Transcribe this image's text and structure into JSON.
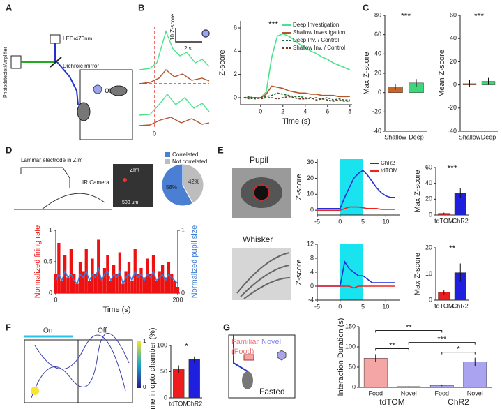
{
  "panels": {
    "letters": [
      "A",
      "B",
      "C",
      "D",
      "E",
      "F",
      "G"
    ],
    "A": {
      "led": "LED/470nm",
      "mirror": "Dichroic mirror",
      "detector": "Photodetector/Amplifier",
      "or": "or"
    },
    "B": {
      "scale_y": "10 Z-score",
      "scale_x": "2 s",
      "zero": "0"
    },
    "D": {
      "electrode": "Laminar electrode in ZIm",
      "camera": "IR Camera",
      "zim": "ZIm",
      "scale": "500 μm"
    },
    "E": {
      "pupil": "Pupil",
      "whisker": "Whisker"
    },
    "F": {
      "on": "On",
      "off": "Off",
      "cbar_min": "0",
      "cbar_max": "1"
    },
    "G": {
      "familiar": "Familiar",
      "food": "(Food)",
      "novel": "Novel",
      "fasted": "Fasted"
    }
  },
  "chart_data": [
    {
      "type": "line",
      "ylabel": "Z-score",
      "xlabel": "Time (s)",
      "annotation": "***",
      "legend": "upper right",
      "x": [
        -1.5,
        -1,
        -0.5,
        0,
        0.5,
        1,
        1.5,
        2,
        2.5,
        3,
        3.5,
        4,
        4.5,
        5,
        5.5,
        6,
        6.5,
        7,
        7.5,
        8
      ],
      "xlim": [
        -1.8,
        8.2
      ],
      "xticks": [
        0,
        2,
        4,
        6,
        8
      ],
      "ylim": [
        -0.6,
        6.6
      ],
      "yticks": [
        0,
        2,
        4,
        6
      ],
      "series": [
        {
          "name": "Deep Investigation",
          "color": "#4be38a",
          "values": [
            0,
            0,
            0,
            0,
            0.5,
            3.5,
            5.3,
            5.5,
            5.3,
            5,
            4.6,
            4.3,
            4,
            3.8,
            3.5,
            3.3,
            3,
            2.8,
            2.6,
            2.4
          ]
        },
        {
          "name": "Shallow Investigation",
          "color": "#b4552c",
          "values": [
            0,
            0,
            0,
            0,
            0.3,
            1,
            0.9,
            0.8,
            0.6,
            0.5,
            0.4,
            0.4,
            0.3,
            0.3,
            0.2,
            0.2,
            0.2,
            0.1,
            0.1,
            0.1
          ]
        },
        {
          "name": "Deep Inv. / Control",
          "color": "#1e6b34",
          "dash": true,
          "values": [
            0,
            0.1,
            -0.1,
            0,
            0.1,
            0.2,
            0.4,
            0.3,
            0.2,
            0.1,
            0.1,
            0,
            -0.1,
            0,
            -0.1,
            0,
            -0.2,
            -0.1,
            -0.2,
            -0.2
          ]
        },
        {
          "name": "Shallow Inv. / Control",
          "color": "#6b3a1e",
          "dash": true,
          "values": [
            0,
            -0.1,
            0,
            -0.1,
            0,
            0,
            -0.1,
            0,
            0.1,
            0,
            -0.1,
            -0.1,
            0,
            -0.2,
            -0.1,
            -0.2,
            -0.3,
            -0.2,
            -0.3,
            -0.3
          ]
        }
      ]
    },
    {
      "type": "bar",
      "ylabel": "Max Z-score",
      "annotation": "***",
      "categories": [
        "Shallow",
        "Deep"
      ],
      "values": [
        6,
        10
      ],
      "errors": [
        3,
        4
      ],
      "colors": [
        "#c8652a",
        "#3ed67a"
      ],
      "ylim": [
        -40,
        80
      ],
      "yticks": [
        -40,
        -20,
        0,
        20,
        40,
        60,
        80
      ]
    },
    {
      "type": "bar",
      "ylabel": "Mean Z-score",
      "annotation": "***",
      "categories": [
        "Shallow",
        "Deep"
      ],
      "values": [
        1,
        3
      ],
      "errors": [
        3,
        3
      ],
      "colors": [
        "#c8652a",
        "#3ed67a"
      ],
      "ylim": [
        -40,
        60
      ],
      "yticks": [
        -40,
        -20,
        0,
        20,
        40,
        60
      ]
    },
    {
      "type": "pie",
      "categories": [
        "Correlated",
        "Not correlated"
      ],
      "values": [
        58,
        42
      ],
      "value_labels": [
        "58%",
        "42%"
      ],
      "colors": [
        "#4a7fd4",
        "#bdbdbd"
      ]
    },
    {
      "type": "combo",
      "ylabel": "Normalized firing rate",
      "y2label": "Normalized pupil size",
      "xlabel": "Time (s)",
      "x": [
        0,
        5,
        10,
        15,
        20,
        25,
        30,
        35,
        40,
        45,
        50,
        55,
        60,
        65,
        70,
        75,
        80,
        85,
        90,
        95,
        100,
        105,
        110,
        115,
        120,
        125,
        130,
        135,
        140,
        145,
        150,
        155,
        160,
        165,
        170,
        175,
        180,
        185,
        190,
        195,
        200
      ],
      "xlim": [
        0,
        200
      ],
      "xticks": [
        0,
        200
      ],
      "ylim": [
        0,
        1
      ],
      "yticks": [
        0,
        0.5,
        1
      ],
      "y2lim": [
        0,
        1
      ],
      "y2ticks": [
        0,
        1
      ],
      "series": [
        {
          "color": "#ee1111",
          "values": [
            0.3,
            0.8,
            0.2,
            0.6,
            0.25,
            0.7,
            0.3,
            0.15,
            0.5,
            0.35,
            0.7,
            0.2,
            0.55,
            0.3,
            0.85,
            0.25,
            0.4,
            0.6,
            0.2,
            0.45,
            0.3,
            0.65,
            0.15,
            0.35,
            0.5,
            0.2,
            0.7,
            0.3,
            0.4,
            0.25,
            0.55,
            0.3,
            0.6,
            0.2,
            0.35,
            0.45,
            0.25,
            0.5,
            0.3,
            0.2,
            0.1
          ]
        },
        {
          "color": "#3a7bd5",
          "axis": "y2",
          "values": [
            0.2,
            0.3,
            0.2,
            0.35,
            0.25,
            0.3,
            0.2,
            0.15,
            0.3,
            0.25,
            0.35,
            0.2,
            0.3,
            0.25,
            0.4,
            0.2,
            0.3,
            0.35,
            0.2,
            0.3,
            0.25,
            0.35,
            0.15,
            0.25,
            0.3,
            0.2,
            0.35,
            0.25,
            0.3,
            0.2,
            0.3,
            0.25,
            0.35,
            0.2,
            0.25,
            0.3,
            0.2,
            0.3,
            0.25,
            0.2,
            0.15
          ]
        }
      ]
    },
    {
      "type": "line",
      "ylabel": "Z-score",
      "legend": "upper right",
      "shade": [
        0,
        5
      ],
      "shade_color": "#19e3ee",
      "x": [
        -5,
        -4,
        -3,
        -2,
        -1,
        0,
        1,
        2,
        3,
        4,
        5,
        6,
        7,
        8,
        9,
        10,
        11,
        12
      ],
      "xlim": [
        -5,
        13
      ],
      "xticks": [
        -5,
        0,
        5,
        10
      ],
      "ylim": [
        -3,
        32
      ],
      "yticks": [
        0,
        10,
        20,
        30
      ],
      "series": [
        {
          "name": "ChR2",
          "color": "#1f2fd8",
          "values": [
            1,
            1,
            1,
            1,
            1,
            1,
            8,
            14,
            20,
            23,
            25,
            22,
            18,
            14,
            11,
            9,
            8,
            8
          ]
        },
        {
          "name": "tdTOM",
          "color": "#ee2222",
          "values": [
            0,
            0,
            0,
            0,
            0,
            0,
            1,
            2,
            2,
            2,
            1.5,
            1,
            1,
            1,
            0.5,
            0.5,
            0.5,
            0.5
          ]
        }
      ]
    },
    {
      "type": "bar",
      "ylabel": "Max Z-score",
      "annotation": "***",
      "categories": [
        "tdTOM",
        "ChR2"
      ],
      "values": [
        2,
        28
      ],
      "errors": [
        1,
        6
      ],
      "colors": [
        "#ee1c1c",
        "#1f1fe0"
      ],
      "ylim": [
        0,
        60
      ],
      "yticks": [
        0,
        20,
        40,
        60
      ]
    },
    {
      "type": "line",
      "ylabel": "Z-score",
      "shade": [
        0,
        5
      ],
      "shade_color": "#19e3ee",
      "x": [
        -5,
        -4,
        -3,
        -2,
        -1,
        0,
        1,
        2,
        3,
        4,
        5,
        6,
        7,
        8,
        9,
        10,
        11,
        12
      ],
      "xlim": [
        -5,
        13
      ],
      "xticks": [
        -5,
        0,
        5,
        10
      ],
      "ylim": [
        -4,
        12
      ],
      "yticks": [
        -4,
        0,
        4,
        8,
        12
      ],
      "series": [
        {
          "color": "#1f2fd8",
          "values": [
            0,
            0,
            0,
            0,
            0,
            0,
            7,
            5,
            4,
            3,
            3,
            2,
            1,
            1,
            1,
            1,
            1,
            1
          ]
        },
        {
          "color": "#ee2222",
          "values": [
            0,
            0,
            0,
            0,
            0,
            0,
            0,
            0,
            -0.5,
            0,
            0,
            0,
            0,
            0,
            0,
            0,
            0,
            0
          ]
        }
      ]
    },
    {
      "type": "bar",
      "ylabel": "Max Z-score",
      "annotation": "**",
      "categories": [
        "tdTOM",
        "ChR2"
      ],
      "values": [
        3,
        10.5
      ],
      "errors": [
        1,
        3.5
      ],
      "colors": [
        "#ee1c1c",
        "#1f1fe0"
      ],
      "ylim": [
        0,
        20
      ],
      "yticks": [
        0,
        10,
        20
      ]
    },
    {
      "type": "bar",
      "ylabel": "Time in opto chamber (%)",
      "annotation": "*",
      "categories": [
        "tdTOM",
        "ChR2"
      ],
      "values": [
        55,
        73
      ],
      "errors": [
        7,
        6
      ],
      "colors": [
        "#ee1c1c",
        "#1f1fe0"
      ],
      "ylim": [
        0,
        100
      ],
      "yticks": [
        0,
        50,
        100
      ]
    },
    {
      "type": "bar",
      "ylabel": "Interaction Duration (s)",
      "categories": [
        "Food",
        "Novel",
        "Food",
        "Novel"
      ],
      "group_labels": [
        "tdTOM",
        "ChR2"
      ],
      "values": [
        72,
        2,
        5,
        63
      ],
      "errors": [
        10,
        1,
        2,
        10
      ],
      "colors": [
        "#f4a6a6",
        "#f4a6a6",
        "#aaa4f0",
        "#aaa4f0"
      ],
      "ylim": [
        0,
        150
      ],
      "yticks": [
        0,
        50,
        100,
        150
      ],
      "annotations": [
        "**",
        "**",
        "***",
        "*"
      ]
    }
  ]
}
